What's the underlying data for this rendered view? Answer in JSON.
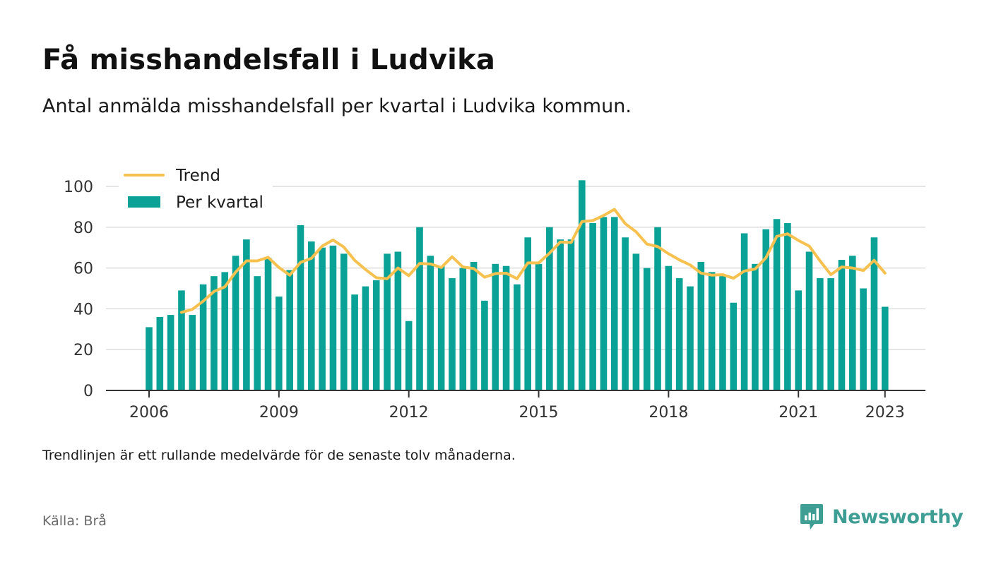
{
  "header": {
    "title": "Få misshandelsfall i Ludvika",
    "subtitle": "Antal anmälda misshandelsfall per kvartal i Ludvika kommun."
  },
  "footer": {
    "note": "Trendlinjen är ett rullande medelvärde för de senaste tolv månaderna.",
    "source": "Källa: Brå",
    "brand": "Newsworthy",
    "brand_icon": "newsworthy-logo-icon"
  },
  "colors": {
    "bars": "#0aa296",
    "trend": "#f7c14f",
    "grid": "#dddddd",
    "axis": "#333333",
    "brand": "#3e9e94"
  },
  "chart_data": {
    "type": "bar",
    "x_start_year": 2006,
    "x_start_quarter": 1,
    "x_ticks": [
      "2006",
      "2009",
      "2012",
      "2015",
      "2018",
      "2021",
      "2023"
    ],
    "y_ticks": [
      "0",
      "20",
      "40",
      "60",
      "80",
      "100"
    ],
    "ylim": [
      0,
      100
    ],
    "grid": true,
    "legend_placement": "top-left",
    "series": [
      {
        "name": "Per kvartal",
        "type": "bar",
        "values": [
          31,
          36,
          37,
          49,
          37,
          52,
          56,
          58,
          66,
          74,
          56,
          65,
          46,
          59,
          81,
          73,
          70,
          71,
          67,
          47,
          51,
          54,
          67,
          68,
          34,
          80,
          66,
          61,
          55,
          60,
          63,
          44,
          62,
          61,
          52,
          75,
          62,
          80,
          74,
          74,
          103,
          82,
          85,
          85,
          75,
          67,
          60,
          80,
          61,
          55,
          51,
          63,
          58,
          56,
          43,
          77,
          62,
          79,
          84,
          82,
          49,
          68,
          55,
          55,
          64,
          66,
          50,
          75,
          41
        ]
      },
      {
        "name": "Trend",
        "type": "line",
        "values": [
          null,
          null,
          null,
          38.25,
          39.75,
          43.75,
          48.5,
          50.75,
          58,
          63.5,
          63.5,
          65.25,
          60.25,
          56.5,
          62.75,
          64.75,
          70.75,
          73.75,
          70.25,
          63.75,
          59.25,
          55.25,
          54.75,
          60,
          56.25,
          62.25,
          62,
          60.25,
          65.5,
          60.5,
          59.75,
          55.5,
          57.25,
          57.5,
          54.75,
          62.5,
          62.5,
          67.25,
          72.75,
          72.5,
          82.75,
          83.25,
          85.75,
          88.75,
          81.75,
          77.75,
          71.75,
          70.5,
          67,
          64,
          61.5,
          57.5,
          56.5,
          56.75,
          55,
          58.5,
          59.5,
          65,
          75.5,
          76.75,
          73.5,
          70.75,
          63.5,
          56.75,
          60.5,
          60,
          58.75,
          63.75,
          57.5
        ]
      }
    ]
  }
}
